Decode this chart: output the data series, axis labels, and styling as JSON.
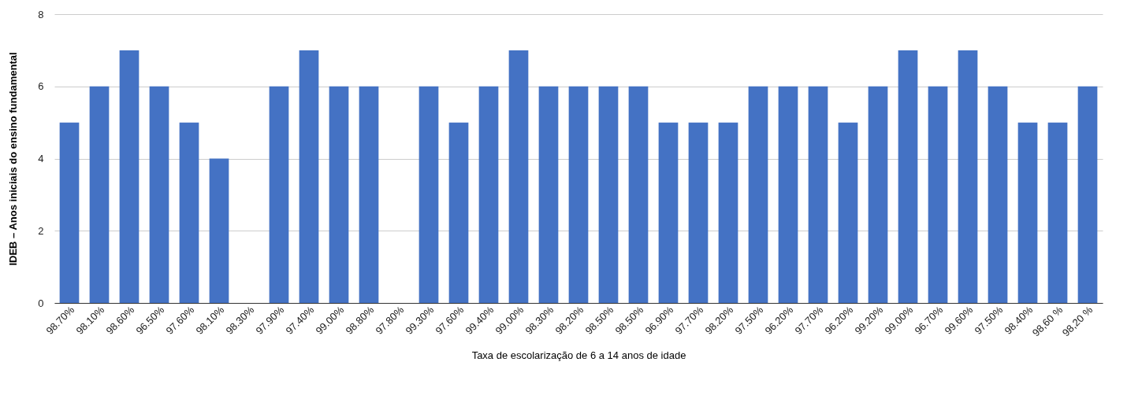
{
  "chart_data": {
    "type": "bar",
    "xlabel": "Taxa de escolarização de 6 a 14 anos de idade",
    "ylabel": "IDEB – Anos iniciais do ensino fundamental",
    "categories": [
      "98.70%",
      "98.10%",
      "98.60%",
      "96.50%",
      "97.60%",
      "98.10%",
      "98.30%",
      "97.90%",
      "97.40%",
      "99.00%",
      "98.80%",
      "97.80%",
      "99.30%",
      "97.60%",
      "99.40%",
      "99.00%",
      "98.30%",
      "98.20%",
      "98.50%",
      "98.50%",
      "96.90%",
      "97.70%",
      "98.20%",
      "97.50%",
      "96.20%",
      "97.70%",
      "96.20%",
      "99.20%",
      "99.00%",
      "96.70%",
      "99.60%",
      "97.50%",
      "98.40%",
      "98,60 %",
      "98,20 %"
    ],
    "values": [
      5,
      6,
      7,
      6,
      5,
      4,
      null,
      6,
      7,
      6,
      6,
      null,
      6,
      5,
      6,
      7,
      6,
      6,
      6,
      6,
      5,
      5,
      5,
      6,
      6,
      6,
      5,
      6,
      7,
      6,
      7,
      6,
      5,
      5,
      6
    ],
    "color": "#4472c4",
    "ylim": [
      0,
      8
    ],
    "yticks": [
      0,
      2,
      4,
      6,
      8
    ],
    "grid": "y"
  }
}
